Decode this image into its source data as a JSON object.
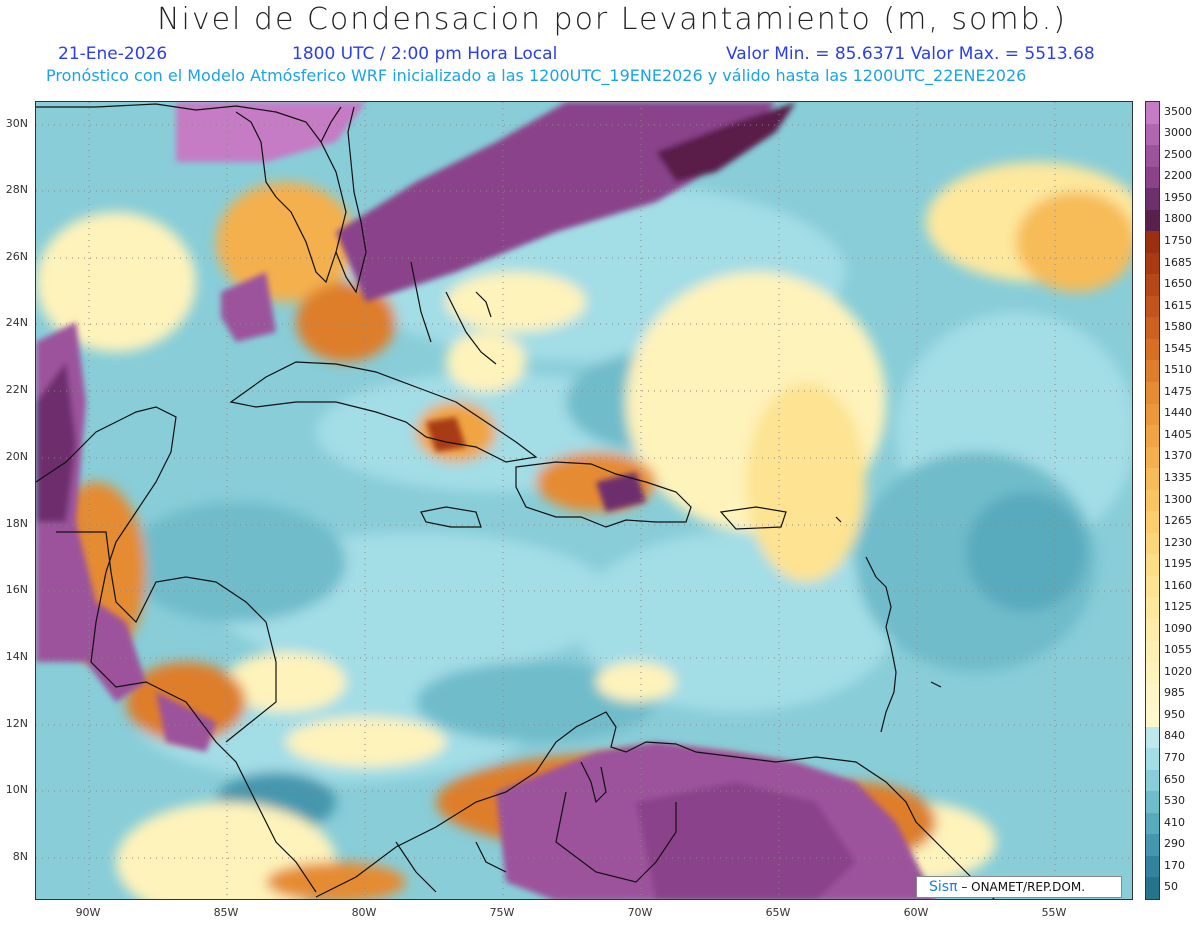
{
  "header": {
    "title": "Nivel de Condensacion por Levantamiento (m, somb.)",
    "date": "21-Ene-2026",
    "time": "1800 UTC / 2:00 pm Hora Local",
    "minmax": "Valor Min. = 85.6371   Valor Max. = 5513.68",
    "model_info": "Pronóstico con el Modelo Atmósferico WRF inicializado a las 1200UTC_19ENE2026 y válido hasta las  1200UTC_22ENE2026"
  },
  "map": {
    "lat_labels": [
      "30N",
      "28N",
      "26N",
      "24N",
      "22N",
      "20N",
      "18N",
      "16N",
      "14N",
      "12N",
      "10N",
      "8N"
    ],
    "lon_labels": [
      "90W",
      "85W",
      "80W",
      "75W",
      "70W",
      "65W",
      "60W",
      "55W"
    ]
  },
  "colorbar": {
    "levels": [
      "3500",
      "3000",
      "2500",
      "2200",
      "1950",
      "1800",
      "1750",
      "1685",
      "1650",
      "1615",
      "1580",
      "1545",
      "1510",
      "1475",
      "1440",
      "1405",
      "1370",
      "1335",
      "1300",
      "1265",
      "1230",
      "1195",
      "1160",
      "1125",
      "1090",
      "1055",
      "1020",
      "985",
      "950",
      "840",
      "770",
      "650",
      "530",
      "410",
      "290",
      "170",
      "50"
    ],
    "colors": [
      "#c57cc5",
      "#b066b0",
      "#9c539c",
      "#8a428a",
      "#6e2f6e",
      "#5a1f4a",
      "#9a3010",
      "#a83a14",
      "#b54718",
      "#c2551c",
      "#cd6220",
      "#d67025",
      "#de7e2c",
      "#e58b32",
      "#eb983a",
      "#f0a443",
      "#f4b04d",
      "#f7bb58",
      "#f9c563",
      "#fbce6e",
      "#fcd67a",
      "#fddd86",
      "#fde392",
      "#fde89d",
      "#feeca8",
      "#fef0b2",
      "#fef3bb",
      "#fef6c4",
      "#fef8cc",
      "#bfe8ec",
      "#a3dde6",
      "#88cdd8",
      "#6fbccb",
      "#58aabd",
      "#4497ae",
      "#32849e",
      "#26738d"
    ]
  },
  "credit": {
    "brand": "Sisπ",
    "text": " – ONAMET/REP.DOM."
  }
}
